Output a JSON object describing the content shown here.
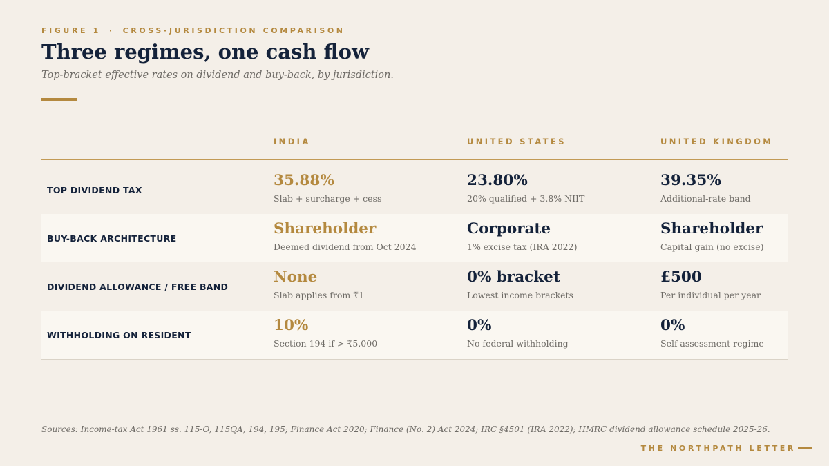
{
  "header": {
    "figure_label": "FIGURE 1",
    "separator": "·",
    "section_label": "CROSS-JURISDICTION COMPARISON",
    "title": "Three regimes, one cash flow",
    "subtitle": "Top-bracket effective rates on dividend and buy-back, by jurisdiction."
  },
  "table": {
    "columns": [
      "INDIA",
      "UNITED STATES",
      "UNITED KINGDOM"
    ],
    "rows": [
      {
        "label": "TOP DIVIDEND TAX",
        "cells": [
          {
            "value": "35.88%",
            "note": "Slab + surcharge + cess"
          },
          {
            "value": "23.80%",
            "note": "20% qualified + 3.8% NIIT"
          },
          {
            "value": "39.35%",
            "note": "Additional-rate band"
          }
        ]
      },
      {
        "label": "BUY-BACK ARCHITECTURE",
        "cells": [
          {
            "value": "Shareholder",
            "note": "Deemed dividend from Oct 2024"
          },
          {
            "value": "Corporate",
            "note": "1% excise tax (IRA 2022)"
          },
          {
            "value": "Shareholder",
            "note": "Capital gain (no excise)"
          }
        ]
      },
      {
        "label": "DIVIDEND ALLOWANCE / FREE BAND",
        "cells": [
          {
            "value": "None",
            "note": "Slab applies from ₹1"
          },
          {
            "value": "0% bracket",
            "note": "Lowest income brackets"
          },
          {
            "value": "£500",
            "note": "Per individual per year"
          }
        ]
      },
      {
        "label": "WITHHOLDING ON RESIDENT",
        "cells": [
          {
            "value": "10%",
            "note": "Section 194 if > ₹5,000"
          },
          {
            "value": "0%",
            "note": "No federal withholding"
          },
          {
            "value": "0%",
            "note": "Self-assessment regime"
          }
        ]
      }
    ]
  },
  "footer": {
    "sources": "Sources: Income-tax Act 1961 ss. 115-O, 115QA, 194, 195; Finance Act 2020; Finance (No. 2) Act 2024; IRC §4501 (IRA 2022); HMRC dividend allowance schedule 2025-26.",
    "brand": "THE NORTHPATH LETTER"
  },
  "colors": {
    "background": "#f4efe8",
    "accent_gold": "#b4893f",
    "navy": "#14223a",
    "muted_text": "#6e6b66",
    "shaded_row": "#faf7f1"
  }
}
